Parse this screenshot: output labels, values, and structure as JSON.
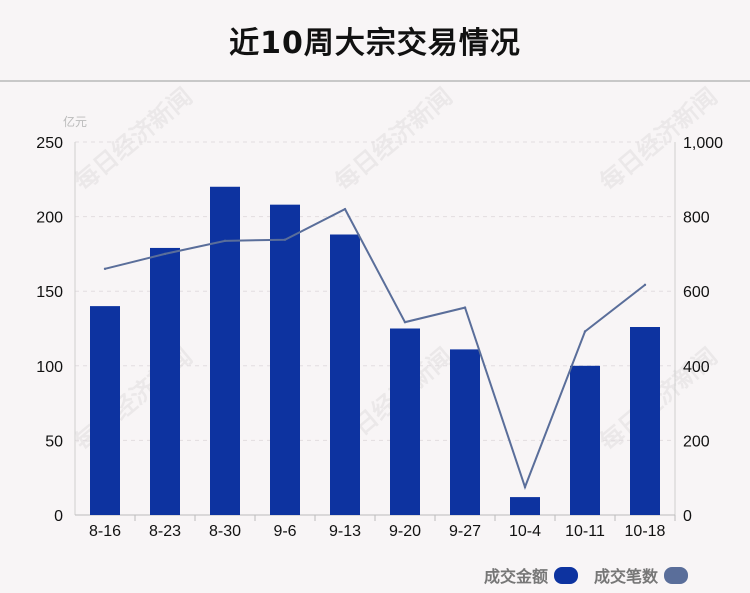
{
  "title": "近10周大宗交易情况",
  "unit_left": "亿元",
  "watermark": "每日经济新闻",
  "legend": {
    "amount": "成交金额",
    "count": "成交笔数"
  },
  "colors": {
    "bar": "#0d33a0",
    "line": "#5a6e9a",
    "amount_swatch": "#0d33a0",
    "count_swatch": "#5a6e9a"
  },
  "chart_data": {
    "type": "bar+line",
    "categories": [
      "8-16",
      "8-23",
      "8-30",
      "9-6",
      "9-13",
      "9-20",
      "9-27",
      "10-4",
      "10-11",
      "10-18"
    ],
    "series": [
      {
        "name": "成交金额",
        "type": "bar",
        "axis": "left",
        "values": [
          140,
          179,
          220,
          208,
          188,
          125,
          111,
          12,
          100,
          126
        ]
      },
      {
        "name": "成交笔数",
        "type": "line",
        "axis": "right",
        "values": [
          660,
          700,
          735,
          738,
          820,
          517,
          556,
          75,
          492,
          617
        ]
      }
    ],
    "y_left": {
      "range": [
        0,
        250
      ],
      "ticks": [
        "0",
        "50",
        "100",
        "150",
        "200",
        "250"
      ]
    },
    "y_right": {
      "range": [
        0,
        1000
      ],
      "ticks": [
        "0",
        "200",
        "400",
        "600",
        "800",
        "1,000"
      ]
    },
    "grid": "dashed horizontal"
  }
}
